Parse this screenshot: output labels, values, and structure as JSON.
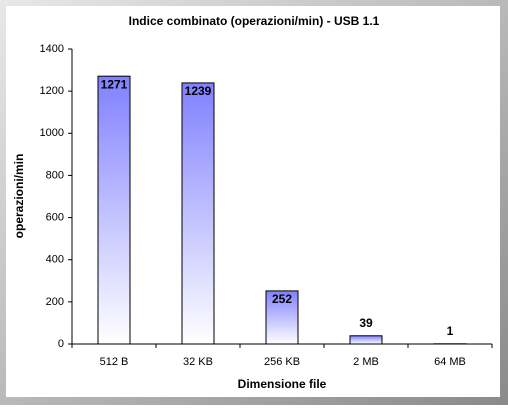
{
  "chart_data": {
    "type": "bar",
    "title": "Indice combinato (operazioni/min) - USB 1.1",
    "x_label": "Dimensione file",
    "y_label": "operazioni/min",
    "categories": [
      "512 B",
      "32 KB",
      "256 KB",
      "2 MB",
      "64 MB"
    ],
    "values": [
      1271,
      1239,
      252,
      39,
      1
    ],
    "color": "#8080ff",
    "ylim": [
      0,
      1400
    ],
    "yticks": [
      0,
      200,
      400,
      600,
      800,
      1000,
      1200,
      1400
    ],
    "grid": false
  }
}
